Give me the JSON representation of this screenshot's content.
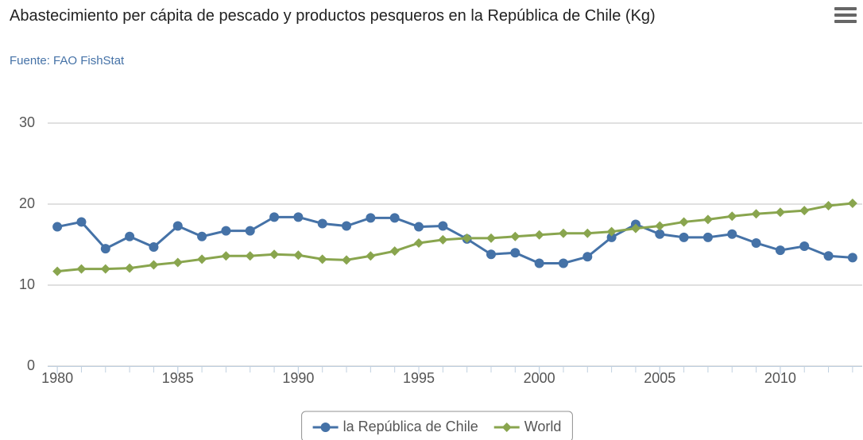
{
  "chart_data": {
    "type": "line",
    "title": "Abastecimiento per cápita de pescado y productos pesqueros en la República de Chile (Kg)",
    "subtitle": "Fuente: FAO FishStat",
    "x": [
      1980,
      1981,
      1982,
      1983,
      1984,
      1985,
      1986,
      1987,
      1988,
      1989,
      1990,
      1991,
      1992,
      1993,
      1994,
      1995,
      1996,
      1997,
      1998,
      1999,
      2000,
      2001,
      2002,
      2003,
      2004,
      2005,
      2006,
      2007,
      2008,
      2009,
      2010,
      2011,
      2012,
      2013
    ],
    "series": [
      {
        "name": "la República de Chile",
        "color": "#4572a7",
        "marker": "circle",
        "values": [
          17.2,
          17.8,
          14.5,
          16.0,
          14.7,
          17.3,
          16.0,
          16.7,
          16.7,
          18.4,
          18.4,
          17.6,
          17.3,
          18.3,
          18.3,
          17.2,
          17.3,
          15.7,
          13.8,
          14.0,
          12.7,
          12.7,
          13.5,
          15.9,
          17.5,
          16.3,
          15.9,
          15.9,
          16.3,
          15.2,
          14.3,
          14.8,
          13.6,
          13.4
        ]
      },
      {
        "name": "World",
        "color": "#89a54e",
        "marker": "diamond",
        "values": [
          11.7,
          12.0,
          12.0,
          12.1,
          12.5,
          12.8,
          13.2,
          13.6,
          13.6,
          13.8,
          13.7,
          13.2,
          13.1,
          13.6,
          14.2,
          15.2,
          15.6,
          15.8,
          15.8,
          16.0,
          16.2,
          16.4,
          16.4,
          16.6,
          17.0,
          17.3,
          17.8,
          18.1,
          18.5,
          18.8,
          19.0,
          19.2,
          19.8,
          20.1
        ]
      }
    ],
    "xlim": [
      1979.6,
      2013.4
    ],
    "xticks": [
      1980,
      1985,
      1990,
      1995,
      2000,
      2005,
      2010
    ],
    "ylim": [
      0,
      30
    ],
    "yticks": [
      0,
      10,
      20,
      30
    ],
    "grid": true,
    "legend": "bottom"
  }
}
